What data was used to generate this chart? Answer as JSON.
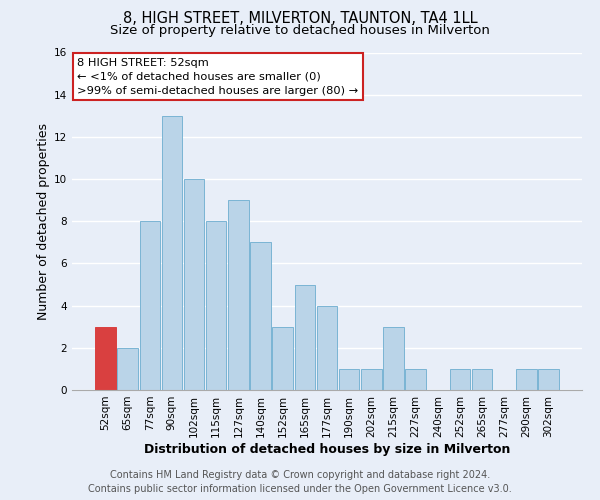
{
  "title": "8, HIGH STREET, MILVERTON, TAUNTON, TA4 1LL",
  "subtitle": "Size of property relative to detached houses in Milverton",
  "xlabel": "Distribution of detached houses by size in Milverton",
  "ylabel": "Number of detached properties",
  "bin_labels": [
    "52sqm",
    "65sqm",
    "77sqm",
    "90sqm",
    "102sqm",
    "115sqm",
    "127sqm",
    "140sqm",
    "152sqm",
    "165sqm",
    "177sqm",
    "190sqm",
    "202sqm",
    "215sqm",
    "227sqm",
    "240sqm",
    "252sqm",
    "265sqm",
    "277sqm",
    "290sqm",
    "302sqm"
  ],
  "counts": [
    3,
    2,
    8,
    13,
    10,
    8,
    9,
    7,
    3,
    5,
    4,
    1,
    1,
    3,
    1,
    0,
    1,
    1,
    0,
    1,
    1
  ],
  "bar_color": "#bad4e8",
  "bar_edge_color": "#7ab4d4",
  "highlight_bin": 0,
  "highlight_color": "#d94040",
  "ylim": [
    0,
    16
  ],
  "yticks": [
    0,
    2,
    4,
    6,
    8,
    10,
    12,
    14,
    16
  ],
  "annotation_title": "8 HIGH STREET: 52sqm",
  "annotation_line1": "← <1% of detached houses are smaller (0)",
  "annotation_line2": ">99% of semi-detached houses are larger (80) →",
  "footer_line1": "Contains HM Land Registry data © Crown copyright and database right 2024.",
  "footer_line2": "Contains public sector information licensed under the Open Government Licence v3.0.",
  "background_color": "#e8eef8",
  "grid_color": "#ffffff",
  "title_fontsize": 10.5,
  "subtitle_fontsize": 9.5,
  "axis_label_fontsize": 9,
  "tick_fontsize": 7.5,
  "footer_fontsize": 7
}
